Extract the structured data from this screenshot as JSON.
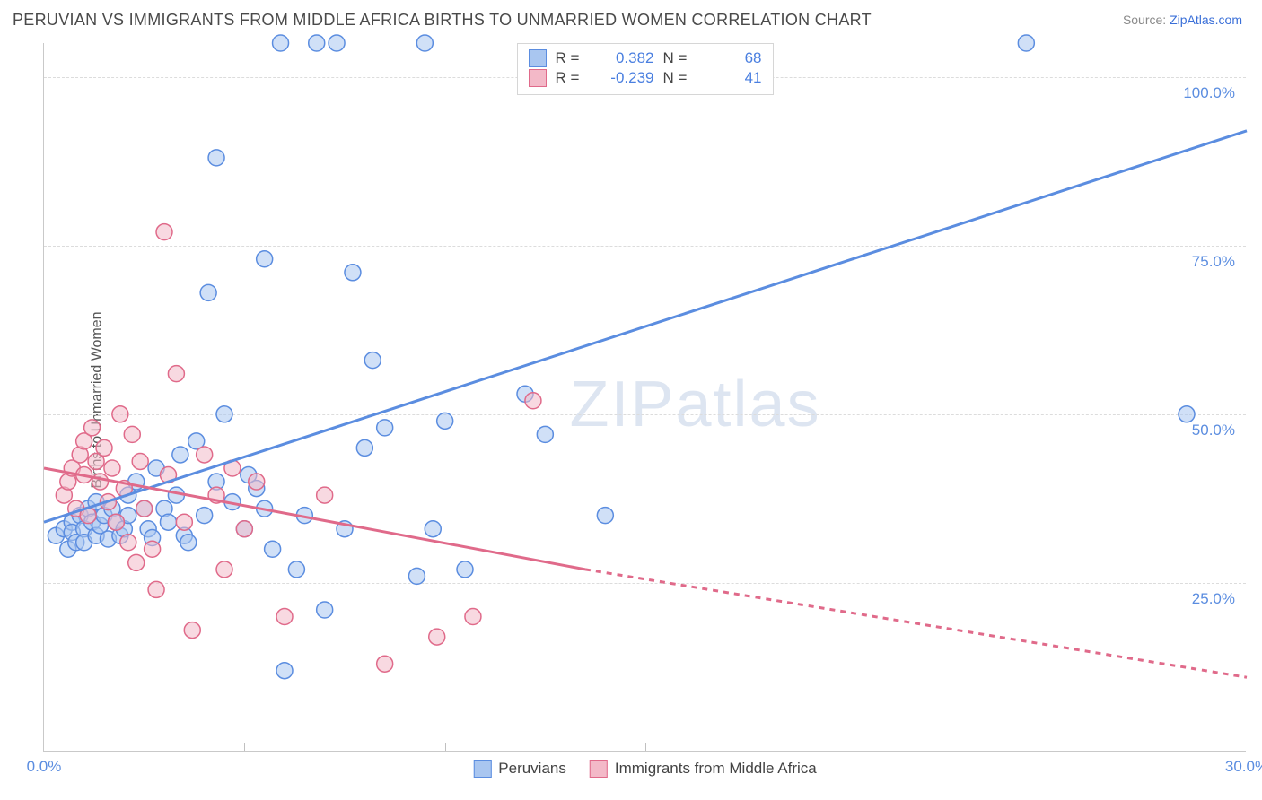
{
  "title": "PERUVIAN VS IMMIGRANTS FROM MIDDLE AFRICA BIRTHS TO UNMARRIED WOMEN CORRELATION CHART",
  "source_label": "Source: ",
  "source_name": "ZipAtlas.com",
  "ylabel": "Births to Unmarried Women",
  "watermark": {
    "bold": "ZIP",
    "light": "atlas"
  },
  "chart": {
    "type": "scatter",
    "background_color": "#ffffff",
    "grid_color": "#dcdcdc",
    "axis_color": "#c9c9c9",
    "xlim": [
      0,
      30
    ],
    "ylim": [
      0,
      105
    ],
    "x_ticks": [
      0,
      30
    ],
    "x_tick_labels": [
      "0.0%",
      "30.0%"
    ],
    "x_minor_step": 5,
    "y_ticks": [
      25,
      50,
      75,
      100
    ],
    "y_tick_labels": [
      "25.0%",
      "50.0%",
      "75.0%",
      "100.0%"
    ],
    "title_fontsize": 18,
    "label_fontsize": 16,
    "tick_fontsize": 17,
    "tick_color": "#5b8de0",
    "marker_radius": 9,
    "marker_opacity": 0.55,
    "line_width": 3
  },
  "series": [
    {
      "key": "peruvians",
      "name": "Peruvians",
      "color_fill": "#a9c6f0",
      "color_stroke": "#5b8de0",
      "R_label": "R  =",
      "R": "0.382",
      "N_label": "N  =",
      "N": "68",
      "trend": {
        "x1": 0,
        "y1": 34,
        "x2": 30,
        "y2": 92,
        "dash": false
      },
      "points": [
        [
          0.3,
          32
        ],
        [
          0.5,
          33
        ],
        [
          0.6,
          30
        ],
        [
          0.7,
          34
        ],
        [
          0.7,
          32.5
        ],
        [
          0.8,
          31
        ],
        [
          0.9,
          35
        ],
        [
          1.0,
          33
        ],
        [
          1.0,
          31
        ],
        [
          1.1,
          36
        ],
        [
          1.2,
          34
        ],
        [
          1.3,
          32
        ],
        [
          1.3,
          37
        ],
        [
          1.4,
          33.5
        ],
        [
          1.5,
          35
        ],
        [
          1.6,
          31.5
        ],
        [
          1.7,
          36
        ],
        [
          1.8,
          34
        ],
        [
          1.9,
          32
        ],
        [
          2.0,
          33
        ],
        [
          2.1,
          35
        ],
        [
          2.1,
          38
        ],
        [
          2.3,
          40
        ],
        [
          2.5,
          36
        ],
        [
          2.6,
          33
        ],
        [
          2.7,
          31.7
        ],
        [
          2.8,
          42
        ],
        [
          3.0,
          36
        ],
        [
          3.1,
          34
        ],
        [
          3.3,
          38
        ],
        [
          3.4,
          44
        ],
        [
          3.5,
          32
        ],
        [
          3.6,
          31
        ],
        [
          3.8,
          46
        ],
        [
          4.0,
          35
        ],
        [
          4.1,
          68
        ],
        [
          4.3,
          40
        ],
        [
          4.3,
          88
        ],
        [
          4.5,
          50
        ],
        [
          4.7,
          37
        ],
        [
          5.0,
          33
        ],
        [
          5.1,
          41
        ],
        [
          5.3,
          39
        ],
        [
          5.5,
          36
        ],
        [
          5.5,
          73
        ],
        [
          5.7,
          30
        ],
        [
          5.9,
          105
        ],
        [
          6.0,
          12
        ],
        [
          6.3,
          27
        ],
        [
          6.5,
          35
        ],
        [
          6.8,
          105
        ],
        [
          7.0,
          21
        ],
        [
          7.3,
          105
        ],
        [
          7.5,
          33
        ],
        [
          7.7,
          71
        ],
        [
          8.0,
          45
        ],
        [
          8.2,
          58
        ],
        [
          8.5,
          48
        ],
        [
          9.3,
          26
        ],
        [
          9.5,
          105
        ],
        [
          9.7,
          33
        ],
        [
          10.0,
          49
        ],
        [
          10.5,
          27
        ],
        [
          12.0,
          53
        ],
        [
          12.5,
          47
        ],
        [
          14.0,
          35
        ],
        [
          24.5,
          105
        ],
        [
          28.5,
          50
        ]
      ]
    },
    {
      "key": "middle_africa",
      "name": "Immigrants from Middle Africa",
      "color_fill": "#f3b9c8",
      "color_stroke": "#e06a8a",
      "R_label": "R  =",
      "R": "-0.239",
      "N_label": "N  =",
      "N": "41",
      "trend": {
        "x1": 0,
        "y1": 42,
        "x2": 13.5,
        "y2": 27,
        "dash": false
      },
      "trend_ext": {
        "x1": 13.5,
        "y1": 27,
        "x2": 30,
        "y2": 11,
        "dash": true
      },
      "points": [
        [
          0.5,
          38
        ],
        [
          0.6,
          40
        ],
        [
          0.7,
          42
        ],
        [
          0.8,
          36
        ],
        [
          0.9,
          44
        ],
        [
          1.0,
          46
        ],
        [
          1.0,
          41
        ],
        [
          1.1,
          35
        ],
        [
          1.2,
          48
        ],
        [
          1.3,
          43
        ],
        [
          1.4,
          40
        ],
        [
          1.5,
          45
        ],
        [
          1.6,
          37
        ],
        [
          1.7,
          42
        ],
        [
          1.8,
          34
        ],
        [
          1.9,
          50
        ],
        [
          2.0,
          39
        ],
        [
          2.1,
          31
        ],
        [
          2.2,
          47
        ],
        [
          2.3,
          28
        ],
        [
          2.4,
          43
        ],
        [
          2.5,
          36
        ],
        [
          2.7,
          30
        ],
        [
          2.8,
          24
        ],
        [
          3.0,
          77
        ],
        [
          3.1,
          41
        ],
        [
          3.3,
          56
        ],
        [
          3.5,
          34
        ],
        [
          3.7,
          18
        ],
        [
          4.0,
          44
        ],
        [
          4.3,
          38
        ],
        [
          4.5,
          27
        ],
        [
          4.7,
          42
        ],
        [
          5.0,
          33
        ],
        [
          5.3,
          40
        ],
        [
          6.0,
          20
        ],
        [
          7.0,
          38
        ],
        [
          8.5,
          13
        ],
        [
          9.8,
          17
        ],
        [
          10.7,
          20
        ],
        [
          12.2,
          52
        ]
      ]
    }
  ],
  "legend_bottom": [
    {
      "label": "Peruvians",
      "series": 0
    },
    {
      "label": "Immigrants from Middle Africa",
      "series": 1
    }
  ]
}
